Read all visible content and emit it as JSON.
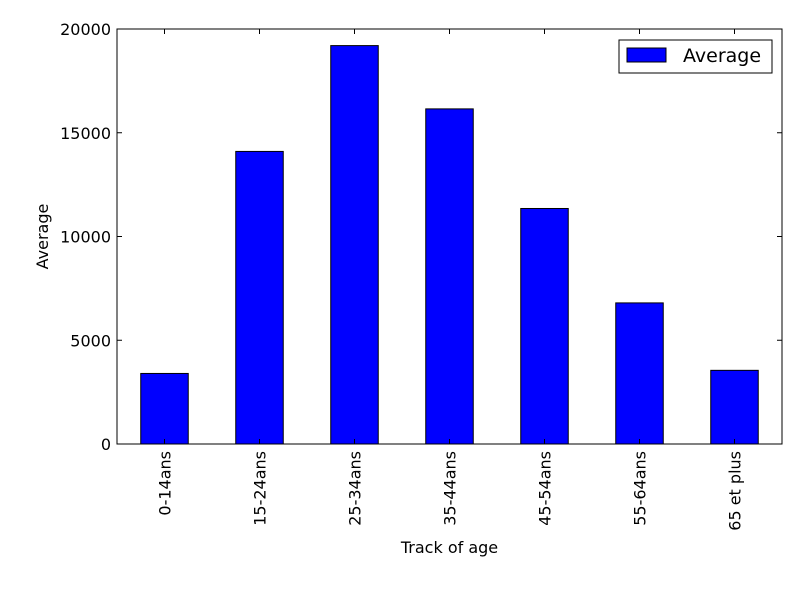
{
  "chart_data": {
    "type": "bar",
    "title": "",
    "xlabel": "Track of age",
    "ylabel": "Average",
    "categories": [
      "0-14ans",
      "15-24ans",
      "25-34ans",
      "35-44ans",
      "45-54ans",
      "55-64ans",
      "65 et plus"
    ],
    "series": [
      {
        "name": "Average",
        "color": "#0000ff",
        "values": [
          3400,
          14100,
          19200,
          16150,
          11350,
          6800,
          3550
        ]
      }
    ],
    "ylim": [
      0,
      20000
    ],
    "yticks": [
      0,
      5000,
      10000,
      15000,
      20000
    ],
    "grid": false,
    "legend_position": "top-right"
  }
}
